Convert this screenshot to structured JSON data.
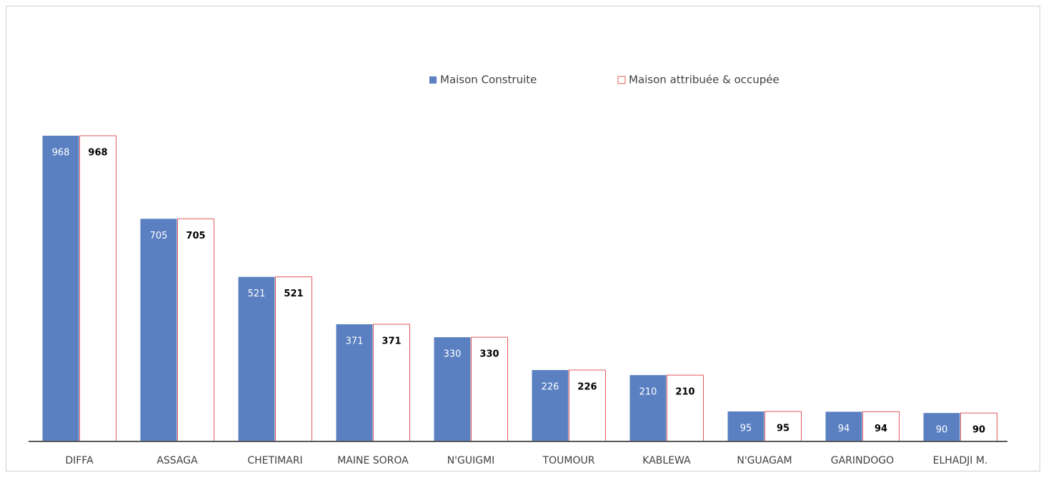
{
  "chart_data": {
    "type": "bar",
    "categories": [
      "DIFFA",
      "ASSAGA",
      "CHETIMARI",
      "MAINE SOROA",
      "N'GUIGMI",
      "TOUMOUR",
      "KABLEWA",
      "N'GUAGAM",
      "GARINDOGO",
      "ELHADJI M."
    ],
    "series": [
      {
        "name": "Maison Construite",
        "color": "#5a80c2",
        "values": [
          968,
          705,
          521,
          371,
          330,
          226,
          210,
          95,
          94,
          90
        ]
      },
      {
        "name": "Maison attribuée & occupée",
        "color": "#ffffff",
        "edgecolor": "#e35a5a",
        "values": [
          968,
          705,
          521,
          371,
          330,
          226,
          210,
          95,
          94,
          90
        ]
      }
    ],
    "legend": "top"
  }
}
